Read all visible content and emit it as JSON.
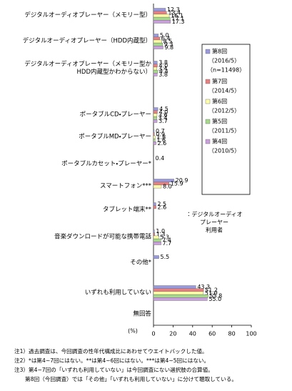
{
  "chart_data": {
    "type": "bar",
    "orientation": "horizontal",
    "categories": [
      "デジタルオーディオプレーヤー（メモリー型）",
      "デジタルオーディオプレーヤー（HDD内蔵型）",
      "デジタルオーディオプレーヤー（メモリー型か\nHDD内蔵型かわからない）",
      "ポータブルCD・プレーヤー",
      "ポータブルMD・プレーヤー",
      "ポータブルカセット・プレーヤー*",
      "スマートフォン***",
      "タブレット端末**",
      "音楽ダウンロードが可能な携帯電話",
      "その他*",
      "いずれも利用していない",
      "無回答"
    ],
    "series": [
      {
        "name": "第8回",
        "period": "（2016/5）",
        "n": "（n=11498）",
        "color": "#9999dd",
        "values": [
          12.3,
          5.0,
          3.8,
          4.5,
          0.7,
          0.4,
          20.9,
          2.5,
          1.0,
          5.5,
          43.3,
          null
        ],
        "value_labels": [
          "12.3",
          "5.0",
          "3.8",
          "4.5",
          "0.7",
          "0.4",
          "20.9",
          "2.5",
          "1.0",
          "5.5",
          "43.3",
          null
        ]
      },
      {
        "name": "第7回",
        "period": "（2014/5）",
        "color": "#e88080",
        "values": [
          13.4,
          6.4,
          4.0,
          4.0,
          0.9,
          null,
          15.9,
          2.6,
          1.3,
          null,
          51.2,
          null
        ],
        "value_labels": [
          "13.4",
          "6.4",
          "4.0",
          "4.0",
          "0.9",
          null,
          "15.9",
          "2.6",
          "1.3",
          null,
          "51.2",
          null
        ]
      },
      {
        "name": "第6回",
        "period": "（2012/5）",
        "color": "#ffffaa",
        "values": [
          16.1,
          8.5,
          3.4,
          3.6,
          1.8,
          null,
          8.0,
          null,
          5.3,
          null,
          51.0,
          null
        ],
        "value_labels": [
          "16.1",
          "8.5",
          "3.4",
          "3.6",
          "1.8",
          null,
          "8.0",
          null,
          "5.3",
          null,
          "51.0",
          null
        ]
      },
      {
        "name": "第5回",
        "period": "（2011/5）",
        "color": "#a6d98a",
        "values": [
          17.1,
          9.3,
          4.4,
          3.4,
          1.6,
          null,
          null,
          null,
          7.4,
          null,
          55.8,
          null
        ],
        "value_labels": [
          "17.1",
          "9.3",
          "4.4",
          "3.4",
          "1.6",
          null,
          null,
          null,
          "7.4",
          null,
          "55.8",
          null
        ]
      },
      {
        "name": "第4回",
        "period": "（2010/5）",
        "color": "#c9a0dc",
        "values": [
          17.3,
          9.8,
          3.8,
          3.7,
          2.6,
          null,
          null,
          null,
          7.7,
          null,
          55.0,
          null
        ],
        "value_labels": [
          "17.3",
          "9.8",
          "3.8",
          "3.7",
          "2.6",
          null,
          null,
          null,
          "7.7",
          null,
          "55.0",
          null
        ]
      }
    ],
    "xlim": [
      0,
      100
    ],
    "xticks": [
      0,
      20,
      40,
      60,
      80,
      100
    ],
    "xlabel": "(%)",
    "annotation": [
      "：デジタルオーディオ",
      "プレーヤー",
      "利用者"
    ],
    "notes": [
      "注1）過去調査は、今回調査の性年代構成比にあわせてウエイトバックした値。",
      "注2）*は第4~7回にはない。**は第4~6回にはない。***は第4~5回にはない。",
      "注3）第4~7回の「いずれも利用していない」は今回調査にない選択肢の合算値。",
      "　　第8回（今回調査）では「その他」「いずれも利用していない」に分けて聴取している。"
    ]
  }
}
